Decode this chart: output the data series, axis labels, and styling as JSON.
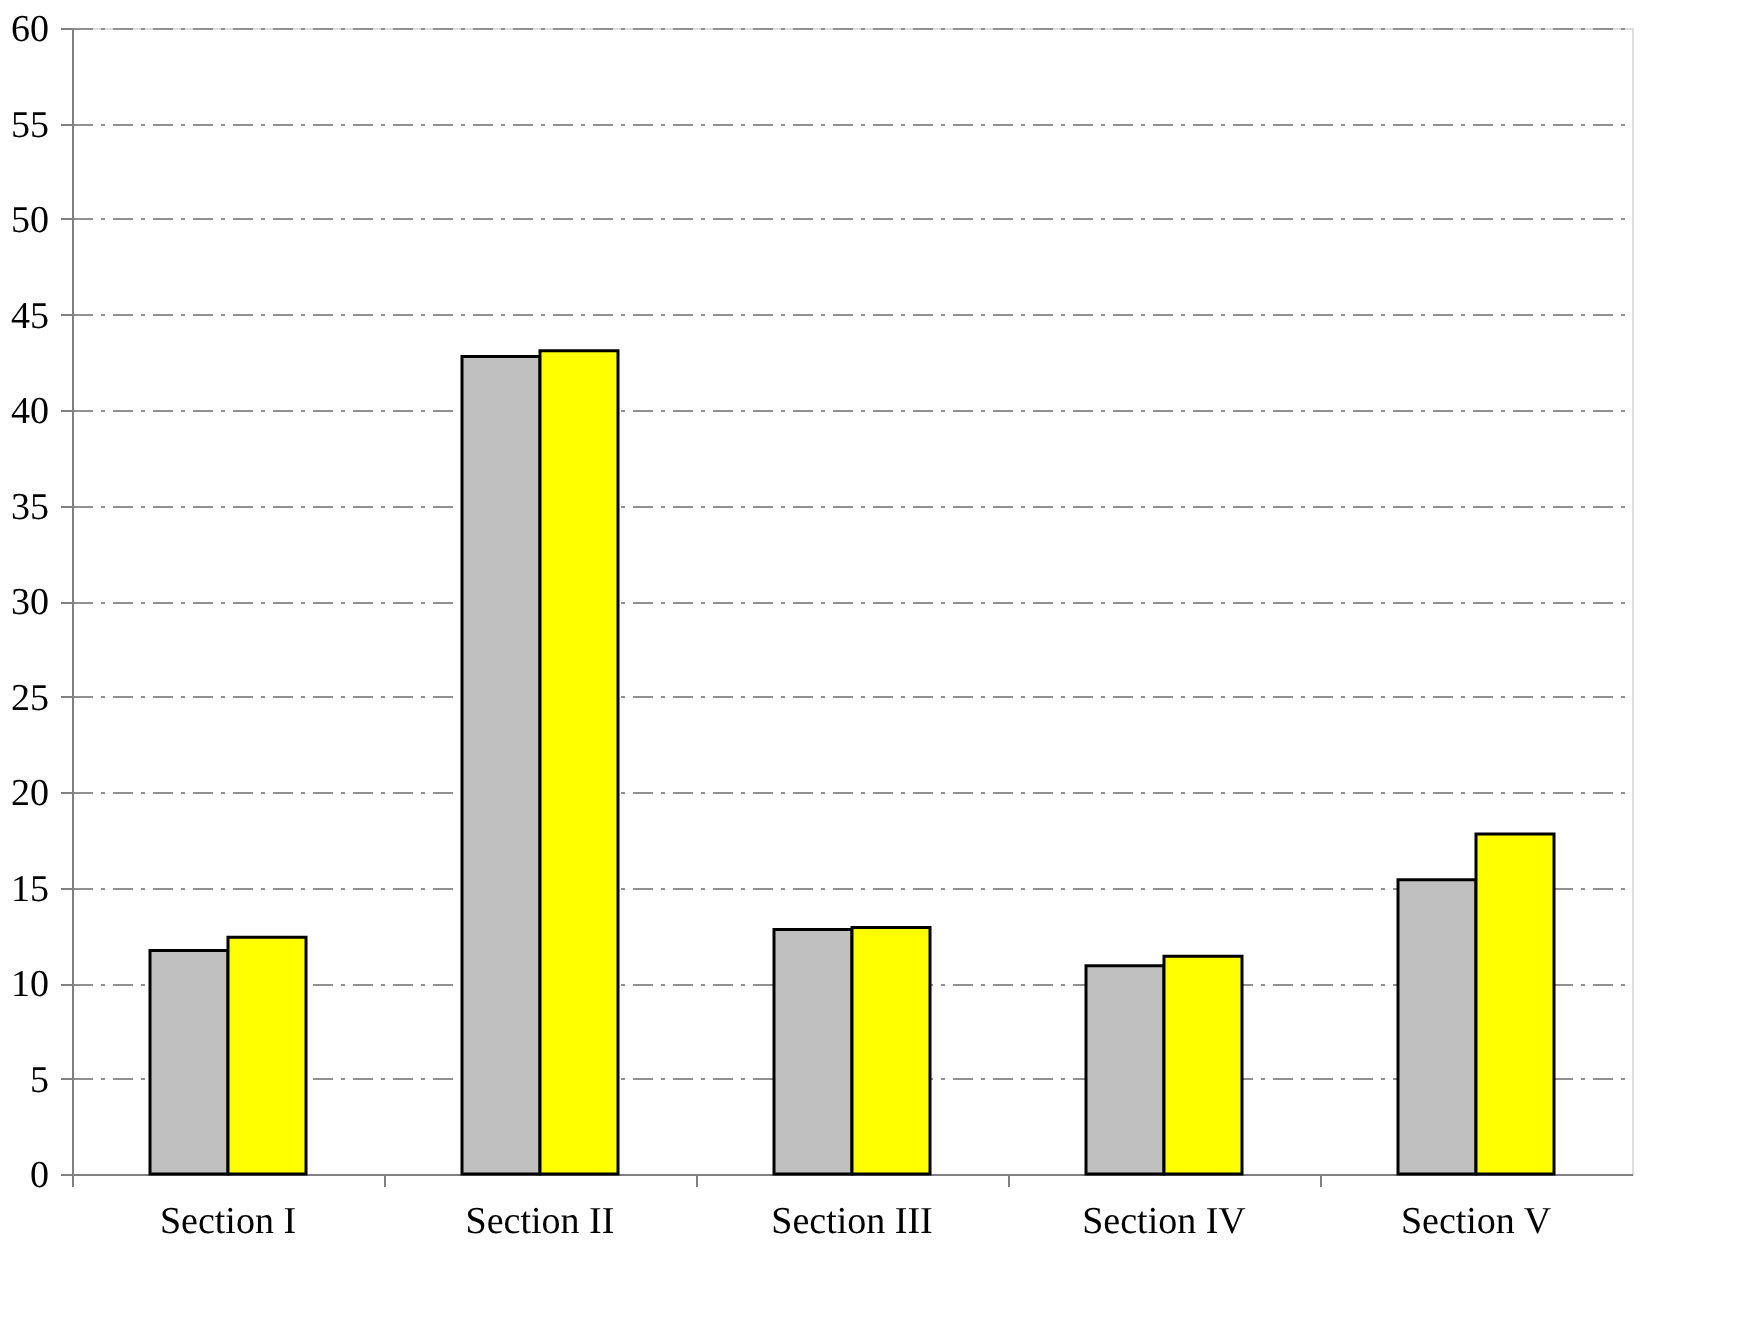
{
  "chart_data": {
    "type": "bar",
    "categories": [
      "Section I",
      "Section II",
      "Section III",
      "Section IV",
      "Section V"
    ],
    "series": [
      {
        "color": "#c0c0c0",
        "values": [
          11.7,
          42.8,
          12.8,
          10.9,
          15.4
        ]
      },
      {
        "color": "#ffff00",
        "values": [
          12.4,
          43.1,
          12.9,
          11.4,
          17.8
        ]
      }
    ],
    "ylim": [
      0,
      60
    ],
    "yticks": [
      0,
      5,
      10,
      15,
      20,
      25,
      30,
      35,
      40,
      45,
      50,
      55,
      60
    ],
    "grid": "y",
    "legend": false
  }
}
